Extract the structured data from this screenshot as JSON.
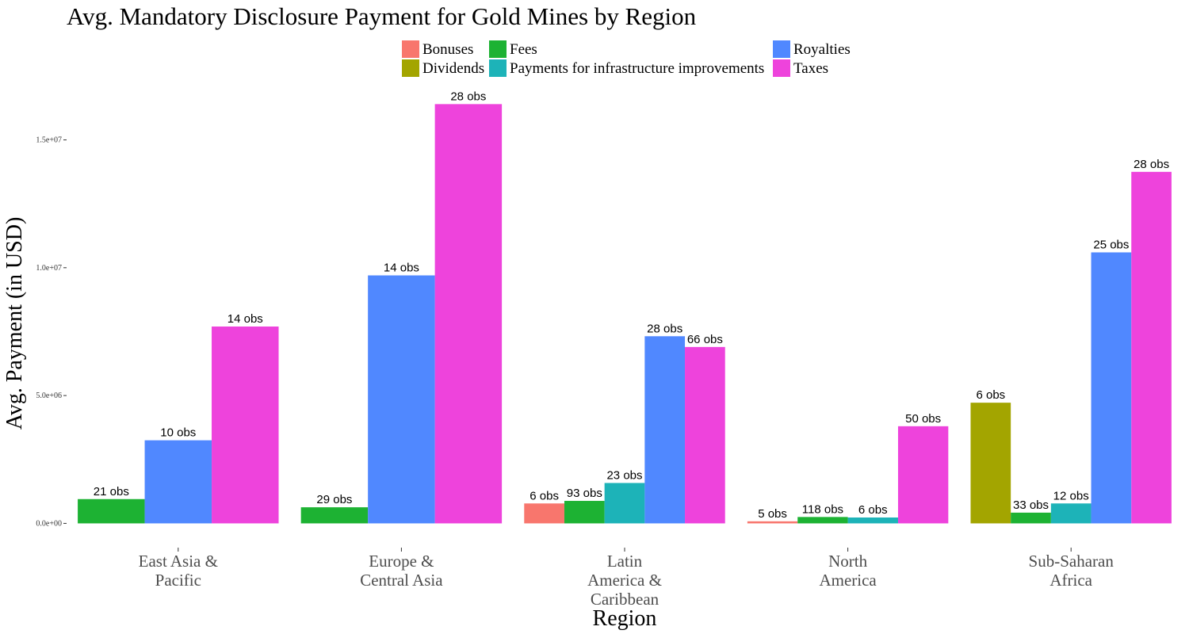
{
  "chart_data": {
    "type": "bar",
    "title": "Avg. Mandatory Disclosure Payment for Gold Mines by Region",
    "xlabel": "Region",
    "ylabel": "Avg. Payment (in USD)",
    "ylim": [
      -700000,
      17000000
    ],
    "yticks": [
      0,
      5000000,
      10000000,
      15000000
    ],
    "ytick_labels": [
      "0.0e+00",
      "5.0e+06",
      "1.0e+07",
      "1.5e+07"
    ],
    "grid": false,
    "legend_position": "top",
    "categories": [
      [
        "East Asia &",
        "Pacific"
      ],
      [
        "Europe &",
        "Central Asia"
      ],
      [
        "Latin",
        "America &",
        "Caribbean"
      ],
      [
        "North",
        "America"
      ],
      [
        "Sub-Saharan",
        "Africa"
      ]
    ],
    "legend": [
      {
        "name": "Bonuses",
        "color": "#F8766D"
      },
      {
        "name": "Dividends",
        "color": "#A3A500"
      },
      {
        "name": "Fees",
        "color": "#1DB233"
      },
      {
        "name": "Payments for infrastructure improvements",
        "color": "#1DB3B8"
      },
      {
        "name": "Royalties",
        "color": "#5088FF"
      },
      {
        "name": "Taxes",
        "color": "#EE43DC"
      }
    ],
    "groups": [
      {
        "bars": [
          {
            "series": "Fees",
            "value": 950000,
            "label": "21 obs"
          },
          {
            "series": "Royalties",
            "value": 3250000,
            "label": "10 obs"
          },
          {
            "series": "Taxes",
            "value": 7700000,
            "label": "14 obs"
          }
        ]
      },
      {
        "bars": [
          {
            "series": "Fees",
            "value": 630000,
            "label": "29 obs"
          },
          {
            "series": "Royalties",
            "value": 9700000,
            "label": "14 obs"
          },
          {
            "series": "Taxes",
            "value": 16400000,
            "label": "28 obs"
          }
        ]
      },
      {
        "bars": [
          {
            "series": "Bonuses",
            "value": 780000,
            "label": "6 obs"
          },
          {
            "series": "Fees",
            "value": 880000,
            "label": "93 obs"
          },
          {
            "series": "Payments for infrastructure improvements",
            "value": 1580000,
            "label": "23 obs"
          },
          {
            "series": "Royalties",
            "value": 7320000,
            "label": "28 obs"
          },
          {
            "series": "Taxes",
            "value": 6900000,
            "label": "66 obs"
          }
        ]
      },
      {
        "bars": [
          {
            "series": "Bonuses",
            "value": 80000,
            "label": "5 obs"
          },
          {
            "series": "Fees",
            "value": 250000,
            "label": "118 obs"
          },
          {
            "series": "Payments for infrastructure improvements",
            "value": 230000,
            "label": "6 obs"
          },
          {
            "series": "Taxes",
            "value": 3800000,
            "label": "50 obs"
          }
        ]
      },
      {
        "bars": [
          {
            "series": "Dividends",
            "value": 4720000,
            "label": "6 obs"
          },
          {
            "series": "Fees",
            "value": 420000,
            "label": "33 obs"
          },
          {
            "series": "Payments for infrastructure improvements",
            "value": 780000,
            "label": "12 obs"
          },
          {
            "series": "Royalties",
            "value": 10600000,
            "label": "25 obs"
          },
          {
            "series": "Taxes",
            "value": 13750000,
            "label": "28 obs"
          }
        ]
      }
    ]
  }
}
